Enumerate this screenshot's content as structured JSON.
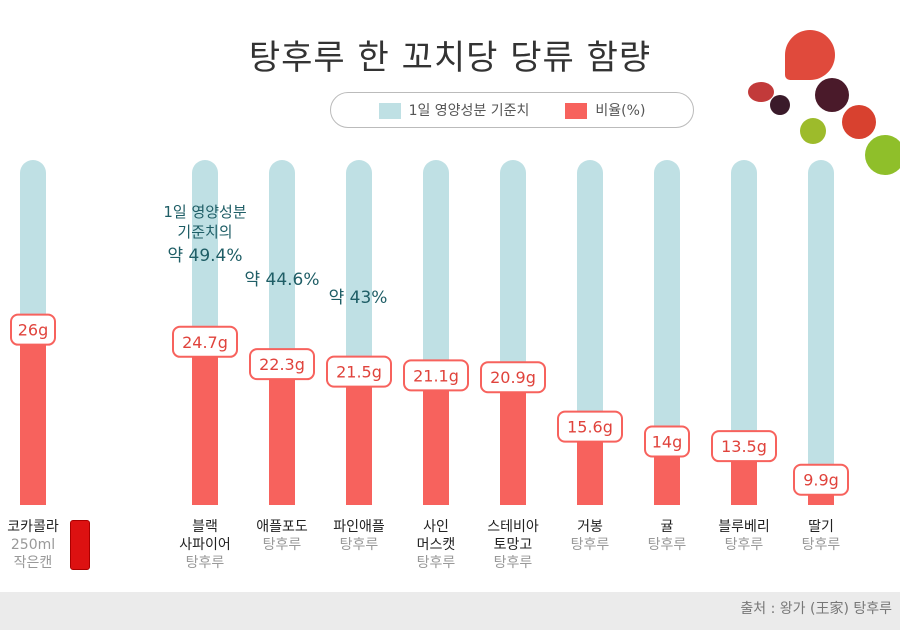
{
  "title": "탕후루 한 꼬치당 당류 함량",
  "legend": {
    "daily": "1일 영양성분 기준치",
    "ratio": "비율(%)"
  },
  "colors": {
    "daily": "#bfe0e4",
    "ratio": "#f7625d",
    "annotation": "#1f5e66"
  },
  "chart_data": {
    "type": "bar",
    "unit": "g",
    "categories": [
      {
        "name": [
          "코카콜라"
        ],
        "sub": [
          "250ml",
          "작은캔"
        ]
      },
      {
        "name": [
          "블랙",
          "사파이어"
        ],
        "sub": [
          "탕후루"
        ]
      },
      {
        "name": [
          "애플포도"
        ],
        "sub": [
          "탕후루"
        ]
      },
      {
        "name": [
          "파인애플"
        ],
        "sub": [
          "탕후루"
        ]
      },
      {
        "name": [
          "사인",
          "머스캣"
        ],
        "sub": [
          "탕후루"
        ]
      },
      {
        "name": [
          "스테비아",
          "토망고"
        ],
        "sub": [
          "탕후루"
        ]
      },
      {
        "name": [
          "거봉"
        ],
        "sub": [
          "탕후루"
        ]
      },
      {
        "name": [
          "귤"
        ],
        "sub": [
          "탕후루"
        ]
      },
      {
        "name": [
          "블루베리"
        ],
        "sub": [
          "탕후루"
        ]
      },
      {
        "name": [
          "딸기"
        ],
        "sub": [
          "탕후루"
        ]
      }
    ],
    "values": [
      26,
      24.7,
      22.3,
      21.5,
      21.1,
      20.9,
      15.6,
      14,
      13.5,
      9.9
    ],
    "labels": [
      "26g",
      "24.7g",
      "22.3g",
      "21.5g",
      "21.1g",
      "20.9g",
      "15.6g",
      "14g",
      "13.5g",
      "9.9g"
    ],
    "annotations": [
      {
        "lines": [
          "1일 영양성분",
          "기준치의",
          "약 49.4%"
        ]
      },
      {
        "lines": [
          "약 44.6%"
        ]
      },
      {
        "lines": [
          "약 43%"
        ]
      }
    ]
  },
  "footer": "출처 : 왕가 (王家) 탕후루"
}
